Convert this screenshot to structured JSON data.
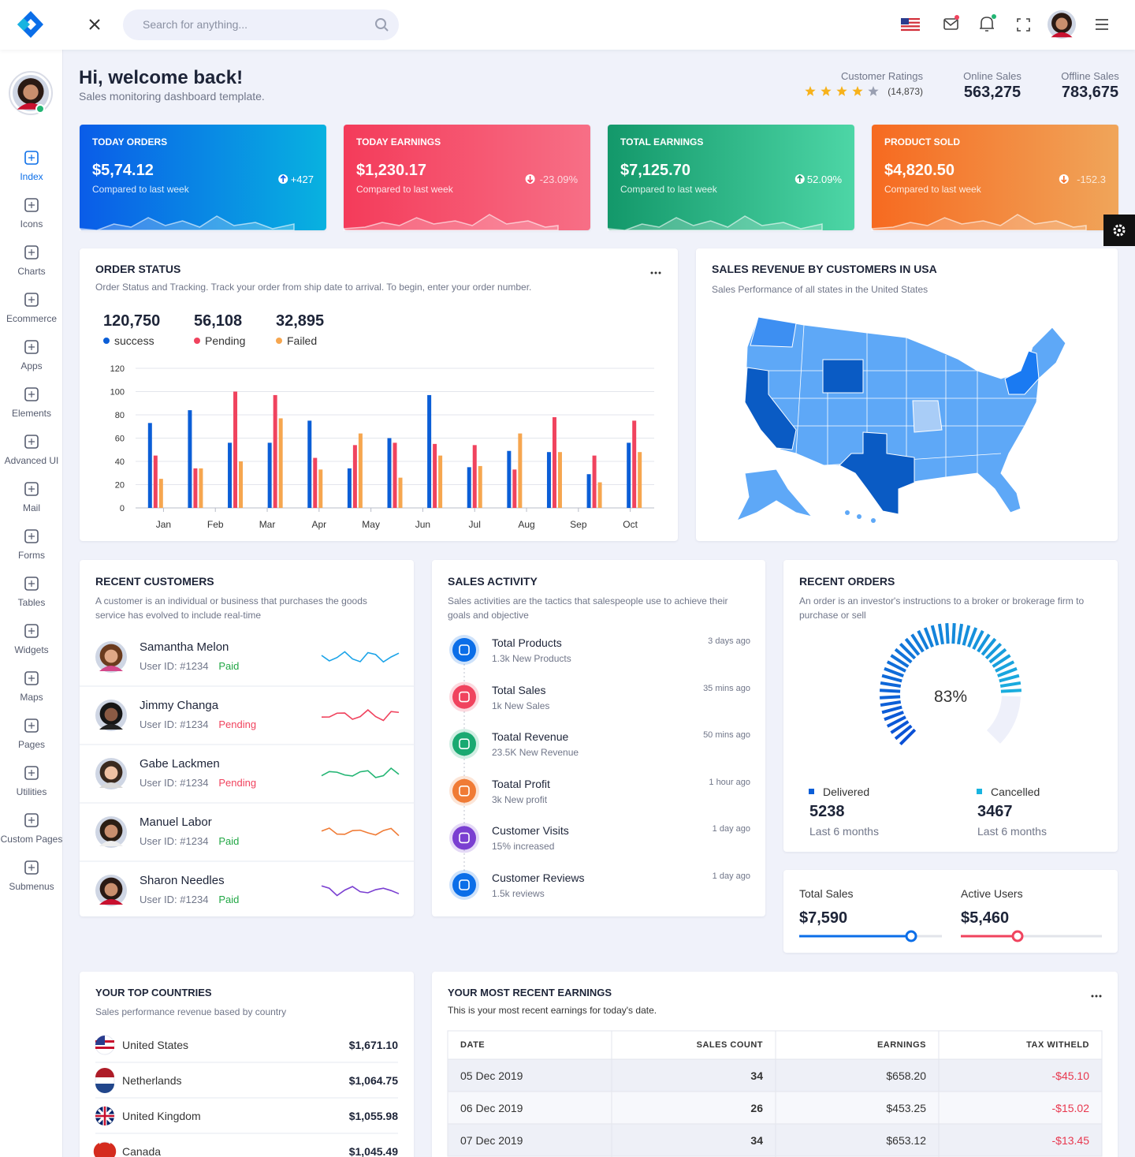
{
  "header": {
    "search_placeholder": "Search for anything..."
  },
  "sidebar": {
    "menu": [
      "Index",
      "Icons",
      "Charts",
      "Ecommerce",
      "Apps",
      "Elements",
      "Advanced UI",
      "Mail",
      "Forms",
      "Tables",
      "Widgets",
      "Maps",
      "Pages",
      "Utilities",
      "Custom Pages",
      "Submenus"
    ]
  },
  "welcome": {
    "title": "Hi, welcome back!",
    "subtitle": "Sales monitoring dashboard template."
  },
  "stats": [
    {
      "label": "Customer Ratings",
      "value": "(14,873)"
    },
    {
      "label": "Online Sales",
      "value": "563,275"
    },
    {
      "label": "Offline Sales",
      "value": "783,675"
    }
  ],
  "cards": [
    {
      "title": "TODAY ORDERS",
      "value": "$5,74.12",
      "caption": "Compared to last week",
      "change": "+427"
    },
    {
      "title": "TODAY EARNINGS",
      "value": "$1,230.17",
      "caption": "Compared to last week",
      "change": "-23.09%"
    },
    {
      "title": "TOTAL EARNINGS",
      "value": "$7,125.70",
      "caption": "Compared to last week",
      "change": "52.09%"
    },
    {
      "title": "PRODUCT SOLD",
      "value": "$4,820.50",
      "caption": "Compared to last week",
      "change": "-152.3"
    }
  ],
  "order_status": {
    "title": "ORDER STATUS",
    "description": "Order Status and Tracking. Track your order from ship date to arrival. To begin, enter your order number.",
    "totals": [
      "120,750",
      "56,108",
      "32,895"
    ]
  },
  "chart_data": {
    "type": "bar",
    "x": [
      0,
      1,
      2,
      3,
      4,
      5,
      6,
      7,
      8,
      9,
      10,
      11,
      12
    ],
    "xlim": [
      -0.5,
      12.5
    ],
    "xticks": [
      {
        "value": 0.2,
        "label": "Jan"
      },
      {
        "value": 1.5,
        "label": "Feb"
      },
      {
        "value": 2.8,
        "label": "Mar"
      },
      {
        "value": 4.1,
        "label": "Apr"
      },
      {
        "value": 5.4,
        "label": "May"
      },
      {
        "value": 6.7,
        "label": "Jun"
      },
      {
        "value": 8,
        "label": "Jul"
      },
      {
        "value": 9.3,
        "label": "Aug"
      },
      {
        "value": 10.6,
        "label": "Sep"
      },
      {
        "value": 11.9,
        "label": "Oct"
      }
    ],
    "ylim": [
      0,
      120
    ],
    "yticks": [
      0,
      20,
      40,
      60,
      80,
      100,
      120
    ],
    "grid": true,
    "series": [
      {
        "name": "success",
        "color": "#0b5ed7",
        "values": [
          73,
          84,
          56,
          56,
          75,
          34,
          60,
          97,
          35,
          49,
          48,
          29,
          56
        ]
      },
      {
        "name": "Pending",
        "color": "#f0435e",
        "values": [
          45,
          34,
          100,
          97,
          43,
          54,
          56,
          55,
          54,
          33,
          78,
          45,
          75
        ]
      },
      {
        "name": "Failed",
        "color": "#f6a64f",
        "values": [
          25,
          34,
          40,
          77,
          33,
          64,
          26,
          45,
          36,
          64,
          48,
          22,
          48
        ]
      }
    ]
  },
  "map": {
    "title": "SALES REVENUE BY CUSTOMERS IN USA",
    "subtitle": "Sales Performance of all states in the United States"
  },
  "recent_customers": {
    "title": "RECENT CUSTOMERS",
    "description": "A customer is an individual or business that purchases the goods service has evolved to include real-time",
    "customers": [
      {
        "name": "Samantha Melon",
        "id": "User ID: #1234",
        "status": "Paid"
      },
      {
        "name": "Jimmy Changa",
        "id": "User ID: #1234",
        "status": "Pending"
      },
      {
        "name": "Gabe Lackmen",
        "id": "User ID: #1234",
        "status": "Pending"
      },
      {
        "name": "Manuel Labor",
        "id": "User ID: #1234",
        "status": "Paid"
      },
      {
        "name": "Sharon Needles",
        "id": "User ID: #1234",
        "status": "Paid"
      }
    ]
  },
  "sales_activity": {
    "title": "SALES ACTIVITY",
    "description": "Sales activities are the tactics that salespeople use to achieve their goals and objective",
    "items": [
      {
        "title": "Total Products",
        "subtitle": "1.3k New Products",
        "time": "3 days ago"
      },
      {
        "title": "Total Sales",
        "subtitle": "1k New Sales",
        "time": "35 mins ago"
      },
      {
        "title": "Toatal Revenue",
        "subtitle": "23.5K New Revenue",
        "time": "50 mins ago"
      },
      {
        "title": "Toatal Profit",
        "subtitle": "3k New profit",
        "time": "1 hour ago"
      },
      {
        "title": "Customer Visits",
        "subtitle": "15% increased",
        "time": "1 day ago"
      },
      {
        "title": "Customer Reviews",
        "subtitle": "1.5k reviews",
        "time": "1 day ago"
      }
    ]
  },
  "recent_orders": {
    "title": "RECENT ORDERS",
    "description": "An order is an investor's instructions to a broker or brokerage firm to purchase or sell",
    "gauge": {
      "value": 83,
      "label": "83%"
    },
    "stats": [
      {
        "label": "Delivered",
        "value": "5238",
        "period": "Last 6 months"
      },
      {
        "label": "Cancelled",
        "value": "3467",
        "period": "Last 6 months"
      }
    ]
  },
  "sliders": [
    {
      "label": "Total Sales",
      "value": "$7,590"
    },
    {
      "label": "Active Users",
      "value": "$5,460"
    }
  ],
  "top_countries": {
    "title": "YOUR TOP COUNTRIES",
    "subtitle": "Sales performance revenue based by country",
    "countries": [
      {
        "name": "United States",
        "amount": "$1,671.10"
      },
      {
        "name": "Netherlands",
        "amount": "$1,064.75"
      },
      {
        "name": "United Kingdom",
        "amount": "$1,055.98"
      },
      {
        "name": "Canada",
        "amount": "$1,045.49"
      }
    ]
  },
  "earnings": {
    "title": "YOUR MOST RECENT EARNINGS",
    "description": "This is your most recent earnings for today's date.",
    "table": {
      "header": [
        "DATE",
        "SALES COUNT",
        "EARNINGS",
        "TAX WITHELD"
      ],
      "rows": [
        [
          "05 Dec 2019",
          "34",
          "$658.20",
          "-$45.10"
        ],
        [
          "06 Dec 2019",
          "26",
          "$453.25",
          "-$15.02"
        ],
        [
          "07 Dec 2019",
          "34",
          "$653.12",
          "-$13.45"
        ]
      ]
    }
  }
}
